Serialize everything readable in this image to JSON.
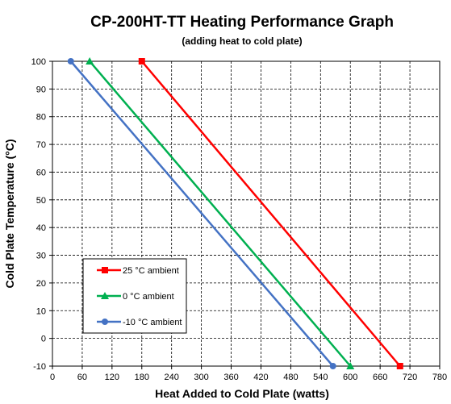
{
  "chart_data": {
    "type": "line",
    "title": "CP-200HT-TT Heating Performance Graph",
    "subtitle": "(adding heat to cold plate)",
    "xlabel": "Heat Added to Cold Plate (watts)",
    "ylabel": "Cold Plate Temperature (°C)",
    "xlim": [
      0,
      780
    ],
    "ylim": [
      -10,
      100
    ],
    "xticks": [
      "0",
      "60",
      "120",
      "180",
      "240",
      "300",
      "360",
      "420",
      "480",
      "540",
      "600",
      "660",
      "720",
      "780"
    ],
    "yticks": [
      "-10",
      "0",
      "10",
      "20",
      "30",
      "40",
      "50",
      "60",
      "70",
      "80",
      "90",
      "100"
    ],
    "grid": true,
    "legend_position": "bottom-left",
    "series": [
      {
        "name": "25 °C ambient",
        "color": "#ff0000",
        "marker": "square",
        "x": [
          180,
          700
        ],
        "y": [
          100,
          -10
        ]
      },
      {
        "name": "0 °C ambient",
        "color": "#00b050",
        "marker": "triangle",
        "x": [
          75,
          600
        ],
        "y": [
          100,
          -10
        ]
      },
      {
        "name": "-10 °C ambient",
        "color": "#4472c4",
        "marker": "circle",
        "x": [
          37,
          565
        ],
        "y": [
          100,
          -10
        ]
      }
    ]
  }
}
